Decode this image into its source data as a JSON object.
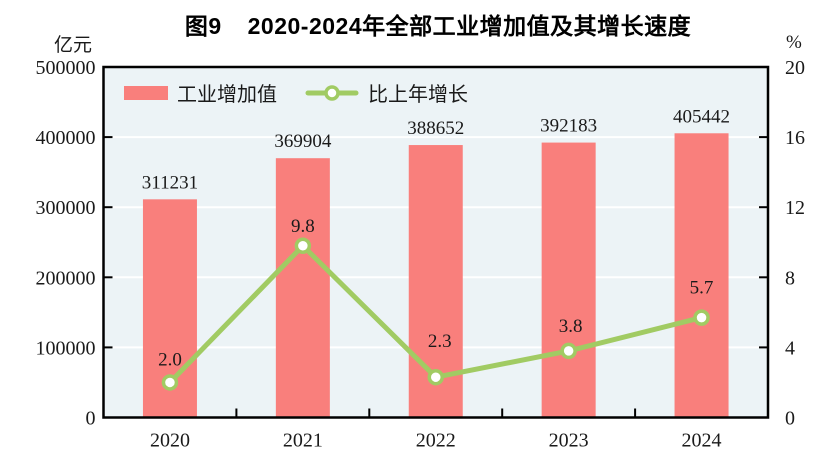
{
  "title": {
    "figure_label": "图9",
    "text": "2020-2024年全部工业增加值及其增长速度"
  },
  "chart_data": {
    "type": "bar+line",
    "title": "图9 2020-2024年全部工业增加值及其增长速度",
    "categories": [
      "2020",
      "2021",
      "2022",
      "2023",
      "2024"
    ],
    "series": [
      {
        "name": "工业增加值",
        "type": "bar",
        "axis": "left",
        "unit": "亿元",
        "color": "#f97f7c",
        "values": [
          311231,
          369904,
          388652,
          392183,
          405442
        ],
        "value_labels": [
          "311231",
          "369904",
          "388652",
          "392183",
          "405442"
        ]
      },
      {
        "name": "比上年增长",
        "type": "line",
        "axis": "right",
        "unit": "%",
        "color": "#a1cb63",
        "marker": "open-circle",
        "values": [
          2.0,
          9.8,
          2.3,
          3.8,
          5.7
        ],
        "value_labels": [
          "2.0",
          "9.8",
          "2.3",
          "3.8",
          "5.7"
        ]
      }
    ],
    "left_axis": {
      "label": "亿元",
      "min": 0,
      "max": 500000,
      "step": 100000,
      "ticks": [
        "0",
        "100000",
        "200000",
        "300000",
        "400000",
        "500000"
      ]
    },
    "right_axis": {
      "label": "%",
      "min": 0,
      "max": 20,
      "step": 4,
      "ticks": [
        "0",
        "4",
        "8",
        "12",
        "16",
        "20"
      ]
    },
    "grid": true,
    "gridline_color": "#ffffff",
    "plot_bg": "#ecf3f6",
    "border_color": "#000000",
    "text_color": "#1a1a1a",
    "legend_position": "top-left-inside"
  }
}
